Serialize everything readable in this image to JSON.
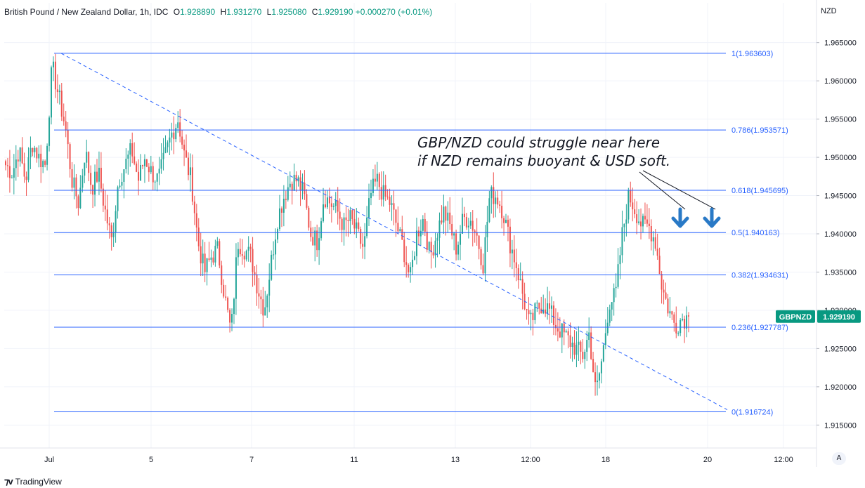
{
  "header": {
    "title": "British Pound / New Zealand Dollar, 1h, IDC",
    "o_label": "O",
    "o_value": "1.928890",
    "h_label": "H",
    "h_value": "1.931270",
    "l_label": "L",
    "l_value": "1.925080",
    "c_label": "C",
    "c_value": "1.929190",
    "change": "+0.000270 (+0.01%)"
  },
  "currency": "NZD",
  "annotation": {
    "line1": "GBP/NZD could struggle near here",
    "line2": "if NZD remains buoyant & USD soft."
  },
  "footer": {
    "brand": "TradingView",
    "auto_button": "A"
  },
  "colors": {
    "up": "#26a69a",
    "down": "#ef5350",
    "fib": "#2962ff",
    "label_bg": "#089981",
    "arrow": "#2979c6"
  },
  "chart_data": {
    "type": "candlestick",
    "symbol": "GBPNZD",
    "last_price": "1.929190",
    "ylim": [
      1.912,
      1.968
    ],
    "y_ticks": [
      "1.915000",
      "1.920000",
      "1.925000",
      "1.930000",
      "1.935000",
      "1.940000",
      "1.945000",
      "1.950000",
      "1.955000",
      "1.960000",
      "1.965000"
    ],
    "x_ticks": [
      "Jul",
      "5",
      "7",
      "11",
      "13",
      "12:00",
      "18",
      "20",
      "12:00"
    ],
    "fib_levels": [
      {
        "label": "1(1.963603)",
        "value": 1.963603
      },
      {
        "label": "0.786(1.953571)",
        "value": 1.953571
      },
      {
        "label": "0.618(1.945695)",
        "value": 1.945695
      },
      {
        "label": "0.5(1.940163)",
        "value": 1.940163
      },
      {
        "label": "0.382(1.934631)",
        "value": 1.934631
      },
      {
        "label": "0.236(1.927787)",
        "value": 1.927787
      },
      {
        "label": "0(1.916724)",
        "value": 1.916724
      }
    ],
    "trendline": {
      "from": 1.9636,
      "to": 1.917
    },
    "close_path": [
      1.949,
      1.948,
      1.951,
      1.947,
      1.952,
      1.95,
      1.949,
      1.962,
      1.958,
      1.954,
      1.947,
      1.944,
      1.951,
      1.946,
      1.948,
      1.943,
      1.939,
      1.947,
      1.949,
      1.951,
      1.947,
      1.95,
      1.948,
      1.947,
      1.95,
      1.953,
      1.955,
      1.95,
      1.947,
      1.939,
      1.935,
      1.937,
      1.938,
      1.932,
      1.927,
      1.939,
      1.938,
      1.937,
      1.933,
      1.93,
      1.936,
      1.942,
      1.945,
      1.947,
      1.947,
      1.945,
      1.94,
      1.939,
      1.945,
      1.944,
      1.943,
      1.941,
      1.942,
      1.94,
      1.938,
      1.945,
      1.947,
      1.945,
      1.944,
      1.941,
      1.938,
      1.934,
      1.94,
      1.942,
      1.937,
      1.94,
      1.943,
      1.941,
      1.938,
      1.942,
      1.942,
      1.94,
      1.936,
      1.945,
      1.945,
      1.943,
      1.939,
      1.936,
      1.932,
      1.928,
      1.93,
      1.931,
      1.93,
      1.928,
      1.927,
      1.926,
      1.925,
      1.924,
      1.927,
      1.919,
      1.924,
      1.931,
      1.932,
      1.94,
      1.945,
      1.943,
      1.941,
      1.941,
      1.939,
      1.933,
      1.93,
      1.928,
      1.929,
      1.929
    ]
  }
}
